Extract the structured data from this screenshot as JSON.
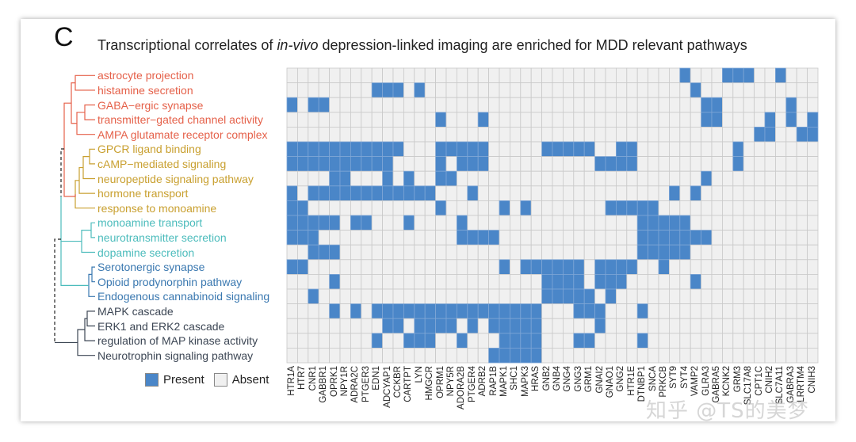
{
  "panel_letter": "C",
  "title": {
    "prefix": "Transcriptional correlates of ",
    "italic": "in-vivo",
    "suffix": " depression-linked imaging are enriched for MDD relevant pathways"
  },
  "watermark": "知乎 @TS的美梦",
  "legend": {
    "present_label": "Present",
    "absent_label": "Absent"
  },
  "colors": {
    "present": "#4a86c8",
    "absent": "#f0f0f0",
    "grid": "#c9c9c9",
    "cluster_red": "#e5614a",
    "cluster_gold": "#c9a030",
    "cluster_teal": "#4cbcbc",
    "cluster_blue": "#3a78b0",
    "cluster_dark": "#3c4654"
  },
  "chart_data": {
    "type": "heatmap",
    "title": "Transcriptional correlates of in-vivo depression-linked imaging are enriched for MDD relevant pathways",
    "legend_position": "bottom-left",
    "values_legend": {
      "1": "Present",
      "0": "Absent"
    },
    "genes": [
      "HTR1A",
      "HTR7",
      "CNR1",
      "GABBR1",
      "OPRK1",
      "NPY1R",
      "ADRA2C",
      "PTGER3",
      "EDN1",
      "ADCYAP1",
      "CCKBR",
      "CARTPT",
      "LYN",
      "HMGCR",
      "OPRM1",
      "NPY5R",
      "ADORA2B",
      "PTGER4",
      "ADRB2",
      "RAP1B",
      "MAPK1",
      "SHC1",
      "MAPK3",
      "HRAS",
      "GNB2",
      "GNB4",
      "GNG4",
      "GNG3",
      "GRM1",
      "GNAI2",
      "GNAO1",
      "GNG2",
      "HTR1E",
      "DTNBP1",
      "SNCA",
      "PRKCB",
      "SYT9",
      "SYT4",
      "VAMP2",
      "GLRA3",
      "GABRA5",
      "KCNK2",
      "GRM3",
      "SLC17A8",
      "CPT1C",
      "CNIH2",
      "SLC7A11",
      "GABRA3",
      "LRRTM4",
      "CNIH3"
    ],
    "pathways": [
      {
        "label": "astrocyte projection",
        "cluster": "red",
        "row": "0000000000 0000000000 0000000000 0000000100 0111001000"
      },
      {
        "label": "histamine secretion",
        "cluster": "red",
        "row": "0000000011 1010000000 0000000000 0000000010 0000000000"
      },
      {
        "label": "GABA−ergic synapse",
        "cluster": "red",
        "row": "1011000000 0000000000 0000000000 0000000001 1000000100"
      },
      {
        "label": "transmitter−gated channel activity",
        "cluster": "red",
        "row": "0000000000 0000100010 0000000000 0000000001 1000010101"
      },
      {
        "label": "AMPA glutamate receptor complex",
        "cluster": "red",
        "row": "0000000000 0000000000 0000000000 0000000000 0000110011"
      },
      {
        "label": "GPCR ligand binding",
        "cluster": "gold",
        "row": "1111111111 1000111110 0000111110 0110000000 0010000000"
      },
      {
        "label": "cAMP−mediated signaling",
        "cluster": "gold",
        "row": "1111111111 0000101110 0000000001 1110000000 0010000000"
      },
      {
        "label": "neuropeptide signaling pathway",
        "cluster": "gold",
        "row": "0000110001 0100110000 0000000000 0000000001 0000000000"
      },
      {
        "label": "hormone transport",
        "cluster": "gold",
        "row": "1011111111 1111000100 0000000000 0000001010 0000000000"
      },
      {
        "label": "response to monoamine",
        "cluster": "gold",
        "row": "1100000000 0000100000 1010000000 1111100000 0000000000"
      },
      {
        "label": "monoamine transport",
        "cluster": "teal",
        "row": "1111101100 0100001000 0000000000 0001111100 0000000000"
      },
      {
        "label": "neurotransmitter secretion",
        "cluster": "teal",
        "row": "1110000000 0000001111 0000000000 0001111111 0000000000"
      },
      {
        "label": "dopamine secretion",
        "cluster": "teal",
        "row": "0011100000 0000000000 0000000000 0001111100 0000000000"
      },
      {
        "label": "Serotonergic synapse",
        "cluster": "blue",
        "row": "1100000000 0000000000 1011111101 1110010000 0000000000"
      },
      {
        "label": "Opioid prodynorphin pathway",
        "cluster": "blue",
        "row": "0000100000 0000000000 0000111101 1100000010 0000000000"
      },
      {
        "label": "Endogenous cannabinoid signaling",
        "cluster": "blue",
        "row": "0010000000 0000000000 0000111110 1000000000 0000000000"
      },
      {
        "label": "MAPK cascade",
        "cluster": "dark",
        "row": "0000101011 1111111111 1111000111 0001000000 0000000000"
      },
      {
        "label": "ERK1 and ERK2 cascade",
        "cluster": "dark",
        "row": "0000000001 1011110101 1111000001 0000000000 0000000000"
      },
      {
        "label": "regulation of MAP kinase activity",
        "cluster": "dark",
        "row": "0000000010 0111001000 1111000110 0001000000 0000000000"
      },
      {
        "label": "Neurotrophin signaling pathway",
        "cluster": "dark",
        "row": "0000000000 0000000001 1111000000 0000000000 0000000000"
      }
    ]
  }
}
